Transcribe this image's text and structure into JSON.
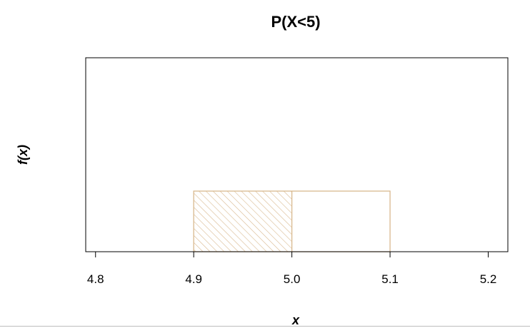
{
  "chart_data": {
    "type": "area",
    "title": "P(X<5)",
    "xlabel": "x",
    "ylabel": "f(x)",
    "xlim": [
      4.79,
      5.22
    ],
    "ylim": [
      0,
      2.0
    ],
    "x_ticks": [
      4.8,
      4.9,
      5.0,
      5.1,
      5.2
    ],
    "x_tick_labels": [
      "4.8",
      "4.9",
      "5.0",
      "5.1",
      "5.2"
    ],
    "grid": false,
    "density": {
      "x_start": 4.9,
      "x_end": 5.1,
      "height": 0.625
    },
    "shaded_region": {
      "x_start": 4.9,
      "x_end": 5.0,
      "pattern": "diagonal-hatch"
    },
    "colors": {
      "density": "#d9b98f",
      "hatch": "#d9b98f",
      "axis": "#000000"
    }
  }
}
